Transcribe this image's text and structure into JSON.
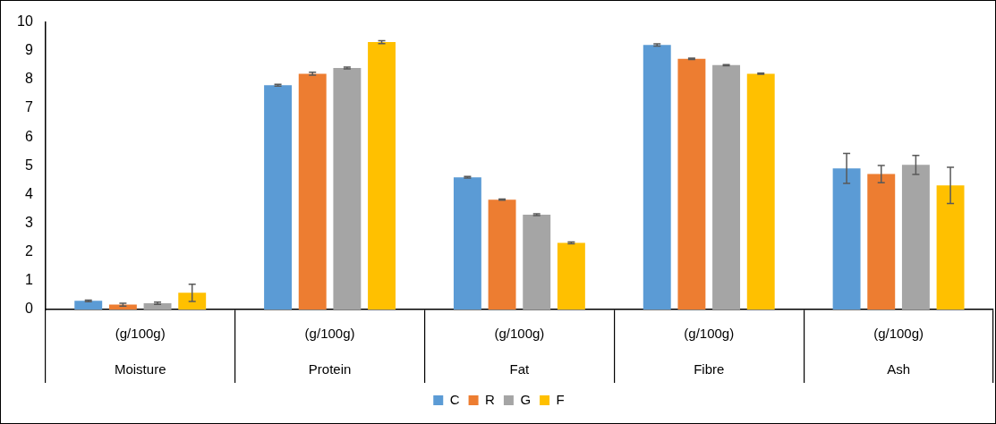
{
  "chart_data": {
    "type": "bar",
    "categories": [
      "(g/100g)\nMoisture",
      "(g/100g)\nProtein",
      "(g/100g)\nFat",
      "(g/100g)\nFibre",
      "(g/100g)\nAsh"
    ],
    "series": [
      {
        "name": "C",
        "color": "#5b9bd5",
        "values": [
          0.3,
          7.8,
          4.6,
          9.2,
          4.91
        ],
        "errors": [
          0.03,
          0.03,
          0.03,
          0.04,
          0.52
        ]
      },
      {
        "name": "R",
        "color": "#ed7d31",
        "values": [
          0.17,
          8.2,
          3.82,
          8.72,
          4.71
        ],
        "errors": [
          0.05,
          0.05,
          0.02,
          0.02,
          0.3
        ]
      },
      {
        "name": "G",
        "color": "#a5a5a5",
        "values": [
          0.22,
          8.4,
          3.3,
          8.5,
          5.03
        ],
        "errors": [
          0.04,
          0.03,
          0.03,
          0.02,
          0.33
        ]
      },
      {
        "name": "F",
        "color": "#ffc000",
        "values": [
          0.58,
          9.3,
          2.32,
          8.2,
          4.32
        ],
        "errors": [
          0.3,
          0.05,
          0.03,
          0.02,
          0.63
        ]
      }
    ],
    "ylim": [
      0,
      10
    ],
    "yticks": [
      0,
      1,
      2,
      3,
      4,
      5,
      6,
      7,
      8,
      9,
      10
    ],
    "grid": false,
    "legend": "bottom"
  }
}
